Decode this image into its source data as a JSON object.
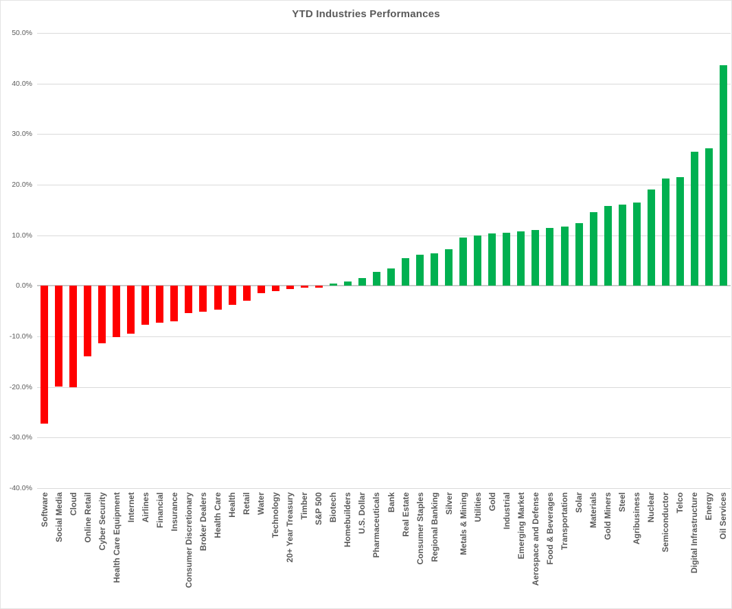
{
  "title": "YTD Industries Performances",
  "colors": {
    "positive": "#00B050",
    "negative": "#FF0000",
    "gridline": "#D9D9D9",
    "axis_line": "#C9C9C9",
    "text": "#595959"
  },
  "y_axis": {
    "tick_values": [
      50,
      40,
      30,
      20,
      10,
      0,
      -10,
      -20,
      -30,
      -40
    ],
    "tick_labels": [
      "50.0%",
      "40.0%",
      "30.0%",
      "20.0%",
      "10.0%",
      "0.0%",
      "-10.0%",
      "-20.0%",
      "-30.0%",
      "-40.0%"
    ]
  },
  "chart_data": {
    "type": "bar",
    "title": "YTD Industries Performances",
    "xlabel": "",
    "ylabel": "",
    "ylim": [
      -40,
      50
    ],
    "ytick_step": 10,
    "grid": true,
    "legend": false,
    "value_unit": "percent",
    "bar_color_rule": "green if value >= 0 else red",
    "categories": [
      "Software",
      "Social Media",
      "Cloud",
      "Online Retail",
      "Cyber Security",
      "Health Care Equipment",
      "Internet",
      "Airlines",
      "Financial",
      "Insurance",
      "Consumer Discretionary",
      "Broker Dealers",
      "Health Care",
      "Health",
      "Retail",
      "Water",
      "Technology",
      "20+ Year Treasury",
      "Timber",
      "S&P 500",
      "Biotech",
      "Homebuilders",
      "U.S. Dollar",
      "Pharmaceuticals",
      "Bank",
      "Real Estate",
      "Consumer Staples",
      "Regional Banking",
      "Silver",
      "Metals & Mining",
      "Utilities",
      "Gold",
      "Industrial",
      "Emerging Market",
      "Aerospace and Defense",
      "Food & Beverages",
      "Transportation",
      "Solar",
      "Materials",
      "Gold Miners",
      "Steel",
      "Agribusiness",
      "Nuclear",
      "Semiconductor",
      "Telco",
      "Digital Infrastructure",
      "Energy",
      "Oil Services"
    ],
    "values": [
      -27.3,
      -19.9,
      -20.1,
      -14.0,
      -11.4,
      -10.1,
      -9.5,
      -7.7,
      -7.3,
      -7.0,
      -5.4,
      -5.1,
      -4.7,
      -3.8,
      -3.0,
      -1.4,
      -1.0,
      -0.7,
      -0.4,
      -0.3,
      0.4,
      0.9,
      1.6,
      2.7,
      3.5,
      5.5,
      6.2,
      6.4,
      7.3,
      9.6,
      10.0,
      10.3,
      10.5,
      10.8,
      11.1,
      11.5,
      11.7,
      12.4,
      14.5,
      15.8,
      16.1,
      16.5,
      19.1,
      21.2,
      21.5,
      26.5,
      27.2,
      43.6
    ]
  }
}
